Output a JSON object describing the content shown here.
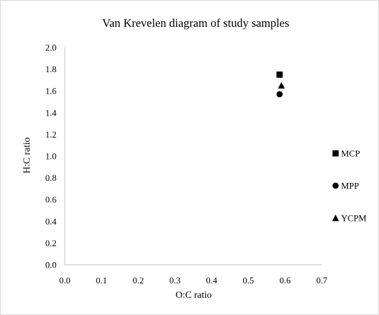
{
  "chart_data": {
    "type": "scatter",
    "title": "Van Krevelen diagram of study samples",
    "xlabel": "O:C ratio",
    "ylabel": "H:C ratio",
    "xlim": [
      0.0,
      0.7
    ],
    "ylim": [
      0.0,
      2.0
    ],
    "x_ticks": [
      "0.0",
      "0.1",
      "0.2",
      "0.3",
      "0.4",
      "0.5",
      "0.6",
      "0.7"
    ],
    "y_ticks": [
      "0.0",
      "0.2",
      "0.4",
      "0.6",
      "0.8",
      "1.0",
      "1.2",
      "1.4",
      "1.6",
      "1.8",
      "2.0"
    ],
    "grid": false,
    "legend_position": "right",
    "series": [
      {
        "name": "MCP",
        "marker": "square",
        "color": "#000000",
        "points": [
          {
            "x": 0.585,
            "y": 1.75
          }
        ]
      },
      {
        "name": "MPP",
        "marker": "circle",
        "color": "#000000",
        "points": [
          {
            "x": 0.585,
            "y": 1.57
          }
        ]
      },
      {
        "name": "YCPM",
        "marker": "triangle",
        "color": "#000000",
        "points": [
          {
            "x": 0.59,
            "y": 1.65
          }
        ]
      }
    ]
  }
}
